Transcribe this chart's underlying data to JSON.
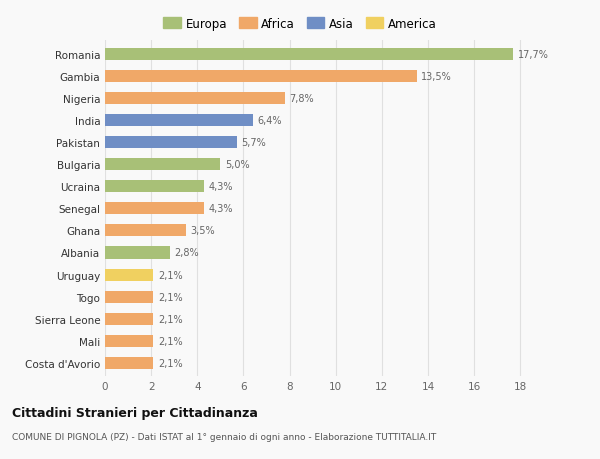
{
  "countries": [
    "Romania",
    "Gambia",
    "Nigeria",
    "India",
    "Pakistan",
    "Bulgaria",
    "Ucraina",
    "Senegal",
    "Ghana",
    "Albania",
    "Uruguay",
    "Togo",
    "Sierra Leone",
    "Mali",
    "Costa d'Avorio"
  ],
  "values": [
    17.7,
    13.5,
    7.8,
    6.4,
    5.7,
    5.0,
    4.3,
    4.3,
    3.5,
    2.8,
    2.1,
    2.1,
    2.1,
    2.1,
    2.1
  ],
  "labels": [
    "17,7%",
    "13,5%",
    "7,8%",
    "6,4%",
    "5,7%",
    "5,0%",
    "4,3%",
    "4,3%",
    "3,5%",
    "2,8%",
    "2,1%",
    "2,1%",
    "2,1%",
    "2,1%",
    "2,1%"
  ],
  "continents": [
    "Europa",
    "Africa",
    "Africa",
    "Asia",
    "Asia",
    "Europa",
    "Europa",
    "Africa",
    "Africa",
    "Europa",
    "America",
    "Africa",
    "Africa",
    "Africa",
    "Africa"
  ],
  "colors": {
    "Europa": "#a8c077",
    "Africa": "#f0a868",
    "Asia": "#6f8ec5",
    "America": "#f0d060"
  },
  "title": "Cittadini Stranieri per Cittadinanza",
  "subtitle": "COMUNE DI PIGNOLA (PZ) - Dati ISTAT al 1° gennaio di ogni anno - Elaborazione TUTTITALIA.IT",
  "xlim": [
    0,
    19.5
  ],
  "xticks": [
    0,
    2,
    4,
    6,
    8,
    10,
    12,
    14,
    16,
    18
  ],
  "background_color": "#f9f9f9",
  "grid_color": "#e0e0e0"
}
